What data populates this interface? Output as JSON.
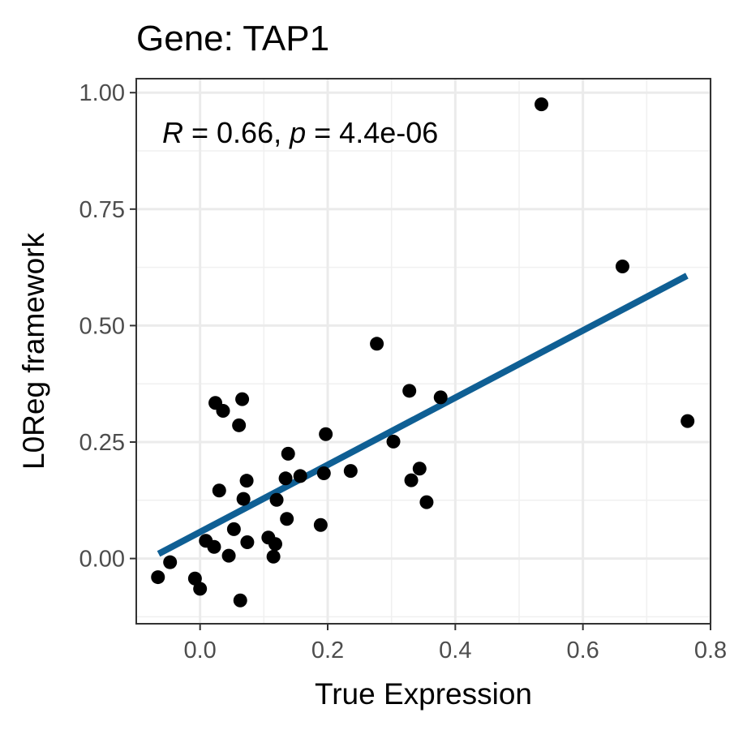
{
  "chart_data": {
    "type": "scatter",
    "title": "Gene: TAP1",
    "xlabel": "True Expression",
    "ylabel": "L0Reg framework",
    "xlim": [
      -0.1,
      0.8
    ],
    "ylim": [
      -0.14,
      1.03
    ],
    "xticks": [
      0.0,
      0.2,
      0.4,
      0.6,
      0.8
    ],
    "xtick_labels": [
      "0.0",
      "0.2",
      "0.4",
      "0.6",
      "0.8"
    ],
    "yticks": [
      0.0,
      0.25,
      0.5,
      0.75,
      1.0
    ],
    "ytick_labels": [
      "0.00",
      "0.25",
      "0.50",
      "0.75",
      "1.00"
    ],
    "grid": true,
    "annotation": {
      "r_symbol": "R",
      "r_text": " = 0.66, ",
      "p_symbol": "p",
      "p_text": " = 4.4e-06"
    },
    "regression_line": {
      "x": [
        -0.065,
        0.763
      ],
      "y": [
        0.01,
        0.607
      ],
      "color": "#0f5f94"
    },
    "point_color": "#000000",
    "points": [
      {
        "x": -0.066,
        "y": -0.04
      },
      {
        "x": -0.047,
        "y": -0.008
      },
      {
        "x": -0.008,
        "y": -0.043
      },
      {
        "x": 0.0,
        "y": -0.065
      },
      {
        "x": 0.009,
        "y": 0.038
      },
      {
        "x": 0.022,
        "y": 0.025
      },
      {
        "x": 0.024,
        "y": 0.334
      },
      {
        "x": 0.03,
        "y": 0.146
      },
      {
        "x": 0.036,
        "y": 0.317
      },
      {
        "x": 0.045,
        "y": 0.006
      },
      {
        "x": 0.053,
        "y": 0.063
      },
      {
        "x": 0.061,
        "y": 0.286
      },
      {
        "x": 0.063,
        "y": -0.09
      },
      {
        "x": 0.066,
        "y": 0.342
      },
      {
        "x": 0.068,
        "y": 0.128
      },
      {
        "x": 0.073,
        "y": 0.167
      },
      {
        "x": 0.074,
        "y": 0.035
      },
      {
        "x": 0.107,
        "y": 0.045
      },
      {
        "x": 0.115,
        "y": 0.004
      },
      {
        "x": 0.118,
        "y": 0.031
      },
      {
        "x": 0.12,
        "y": 0.126
      },
      {
        "x": 0.134,
        "y": 0.172
      },
      {
        "x": 0.136,
        "y": 0.085
      },
      {
        "x": 0.138,
        "y": 0.225
      },
      {
        "x": 0.157,
        "y": 0.177
      },
      {
        "x": 0.189,
        "y": 0.072
      },
      {
        "x": 0.194,
        "y": 0.183
      },
      {
        "x": 0.197,
        "y": 0.267
      },
      {
        "x": 0.236,
        "y": 0.188
      },
      {
        "x": 0.277,
        "y": 0.461
      },
      {
        "x": 0.303,
        "y": 0.251
      },
      {
        "x": 0.328,
        "y": 0.36
      },
      {
        "x": 0.331,
        "y": 0.168
      },
      {
        "x": 0.344,
        "y": 0.193
      },
      {
        "x": 0.355,
        "y": 0.121
      },
      {
        "x": 0.377,
        "y": 0.346
      },
      {
        "x": 0.535,
        "y": 0.975
      },
      {
        "x": 0.662,
        "y": 0.627
      },
      {
        "x": 0.764,
        "y": 0.295
      }
    ]
  }
}
